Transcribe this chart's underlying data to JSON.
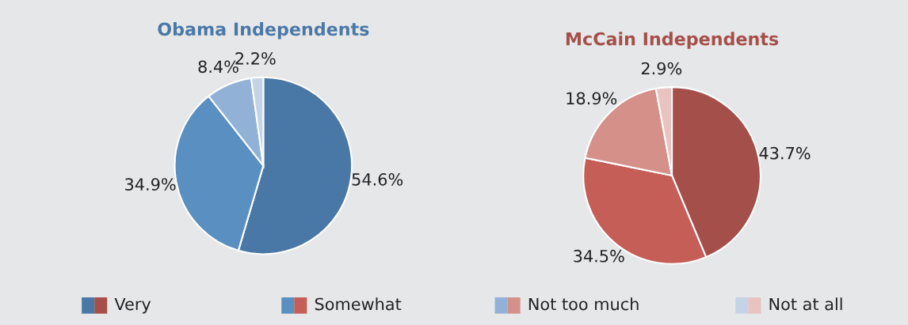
{
  "chart_data": [
    {
      "type": "pie",
      "title": "Obama Independents",
      "categories": [
        "Very",
        "Somewhat",
        "Not too much",
        "Not at all"
      ],
      "values": [
        54.6,
        34.9,
        8.4,
        2.2
      ],
      "value_labels": [
        "54.6%",
        "34.9%",
        "8.4%",
        "2.2%"
      ],
      "colors": [
        "#4a78a6",
        "#5a8fc2",
        "#92b1d6",
        "#c5d3e6"
      ],
      "legend": "bottom"
    },
    {
      "type": "pie",
      "title": "McCain Independents",
      "categories": [
        null,
        null,
        null,
        null
      ],
      "values": [
        43.7,
        34.5,
        18.9,
        2.9
      ],
      "value_labels": [
        "43.7%",
        "34.5%",
        "18.9%",
        "2.9%"
      ],
      "colors": [
        "#a54f4a",
        "#c45e57",
        "#d59089",
        "#e8c3c0"
      ]
    }
  ]
}
